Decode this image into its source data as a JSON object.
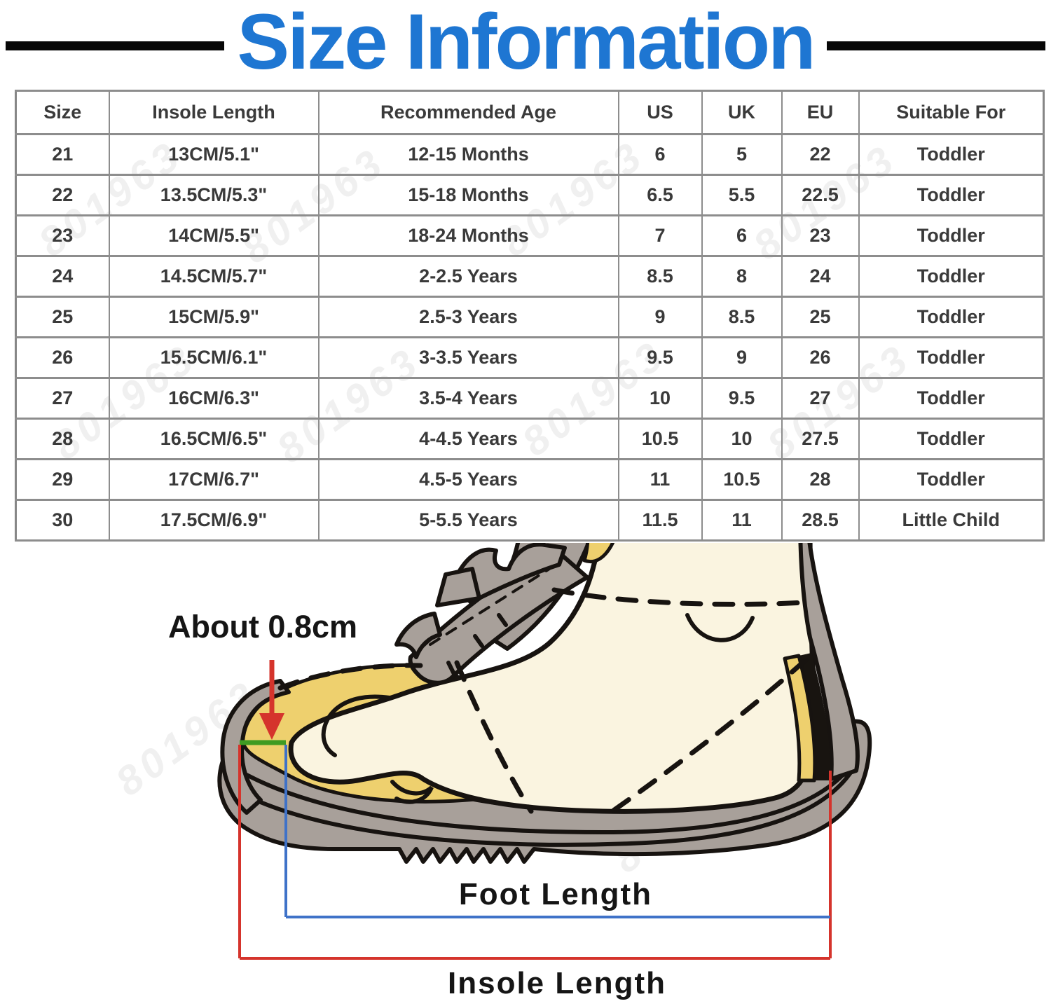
{
  "title": {
    "text": "Size Information",
    "color": "#1e76d2"
  },
  "size_table": {
    "headers": [
      "Size",
      "Insole Length",
      "Recommended Age",
      "US",
      "UK",
      "EU",
      "Suitable For"
    ],
    "rows": [
      [
        "21",
        "13CM/5.1\"",
        "12-15 Months",
        "6",
        "5",
        "22",
        "Toddler"
      ],
      [
        "22",
        "13.5CM/5.3\"",
        "15-18 Months",
        "6.5",
        "5.5",
        "22.5",
        "Toddler"
      ],
      [
        "23",
        "14CM/5.5\"",
        "18-24 Months",
        "7",
        "6",
        "23",
        "Toddler"
      ],
      [
        "24",
        "14.5CM/5.7\"",
        "2-2.5 Years",
        "8.5",
        "8",
        "24",
        "Toddler"
      ],
      [
        "25",
        "15CM/5.9\"",
        "2.5-3 Years",
        "9",
        "8.5",
        "25",
        "Toddler"
      ],
      [
        "26",
        "15.5CM/6.1\"",
        "3-3.5 Years",
        "9.5",
        "9",
        "26",
        "Toddler"
      ],
      [
        "27",
        "16CM/6.3\"",
        "3.5-4 Years",
        "10",
        "9.5",
        "27",
        "Toddler"
      ],
      [
        "28",
        "16.5CM/6.5\"",
        "4-4.5 Years",
        "10.5",
        "10",
        "27.5",
        "Toddler"
      ],
      [
        "29",
        "17CM/6.7\"",
        "4.5-5 Years",
        "11",
        "10.5",
        "28",
        "Toddler"
      ],
      [
        "30",
        "17.5CM/6.9\"",
        "5-5.5 Years",
        "11.5",
        "11",
        "28.5",
        "Little Child"
      ]
    ],
    "watermark_text": "801963"
  },
  "diagram": {
    "gap_label": "About 0.8cm",
    "foot_length_label": "Foot Length",
    "insole_length_label": "Insole Length",
    "colors": {
      "shoe_gray": "#a8a09a",
      "insole_yellow": "#eed06e",
      "foot_cream": "#faf4e0",
      "outline": "#171310",
      "measure_red": "#d5342c",
      "measure_blue": "#3f72c8",
      "gap_green": "#3f9b22"
    }
  },
  "chart_data": {
    "type": "table",
    "title": "Size Information",
    "columns": [
      "Size",
      "Insole Length",
      "Recommended Age",
      "US",
      "UK",
      "EU",
      "Suitable For"
    ],
    "rows": [
      [
        "21",
        "13CM/5.1\"",
        "12-15 Months",
        "6",
        "5",
        "22",
        "Toddler"
      ],
      [
        "22",
        "13.5CM/5.3\"",
        "15-18 Months",
        "6.5",
        "5.5",
        "22.5",
        "Toddler"
      ],
      [
        "23",
        "14CM/5.5\"",
        "18-24 Months",
        "7",
        "6",
        "23",
        "Toddler"
      ],
      [
        "24",
        "14.5CM/5.7\"",
        "2-2.5 Years",
        "8.5",
        "8",
        "24",
        "Toddler"
      ],
      [
        "25",
        "15CM/5.9\"",
        "2.5-3 Years",
        "9",
        "8.5",
        "25",
        "Toddler"
      ],
      [
        "26",
        "15.5CM/6.1\"",
        "3-3.5 Years",
        "9.5",
        "9",
        "26",
        "Toddler"
      ],
      [
        "27",
        "16CM/6.3\"",
        "3.5-4 Years",
        "10",
        "9.5",
        "27",
        "Toddler"
      ],
      [
        "28",
        "16.5CM/6.5\"",
        "4-4.5 Years",
        "10.5",
        "10",
        "27.5",
        "Toddler"
      ],
      [
        "29",
        "17CM/6.7\"",
        "4.5-5 Years",
        "11",
        "10.5",
        "28",
        "Toddler"
      ],
      [
        "30",
        "17.5CM/6.9\"",
        "5-5.5 Years",
        "11.5",
        "11",
        "28.5",
        "Little Child"
      ]
    ]
  }
}
